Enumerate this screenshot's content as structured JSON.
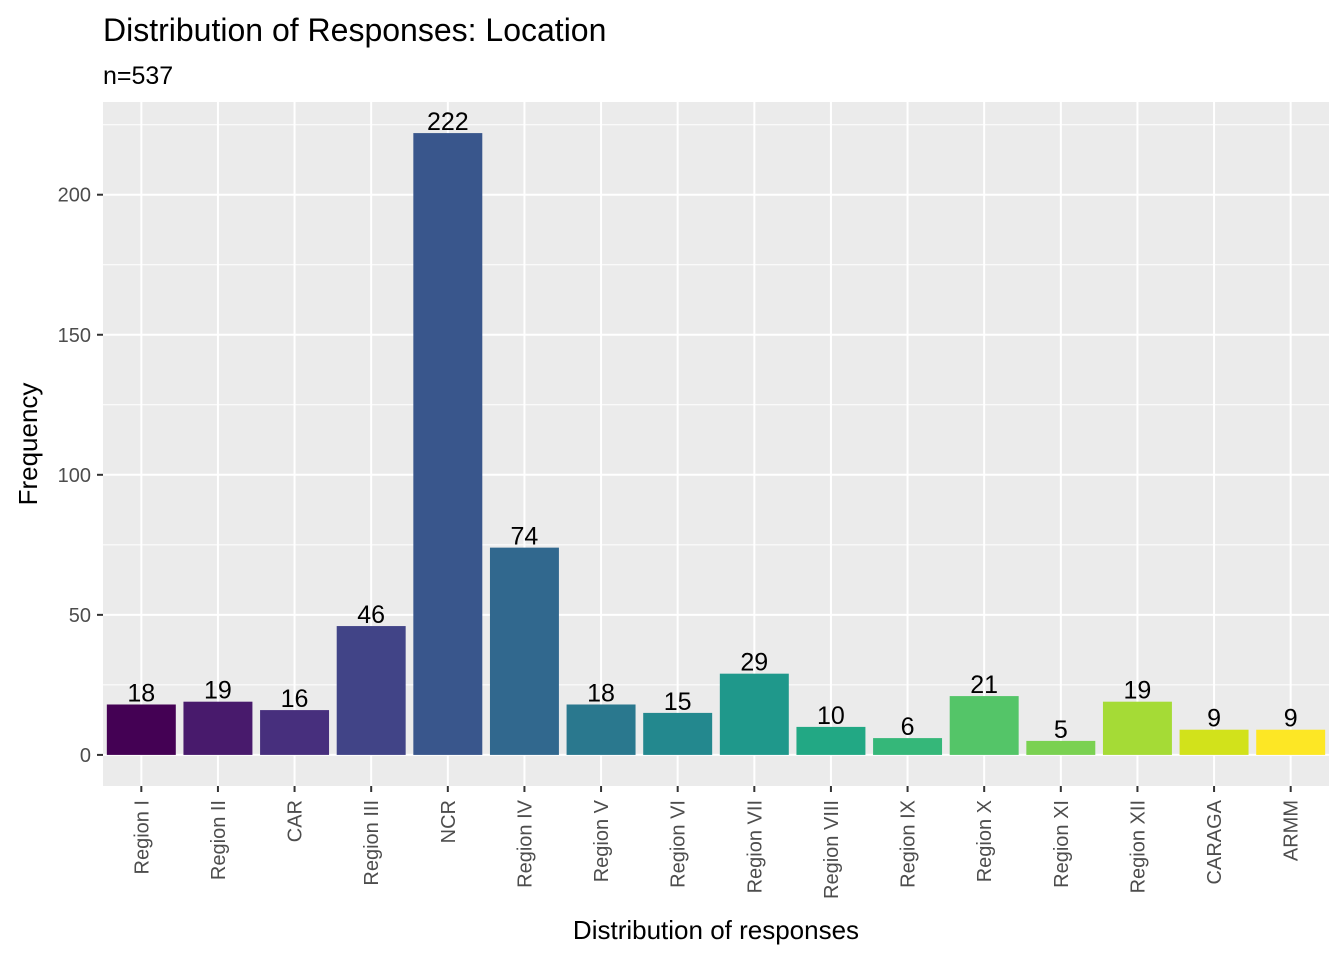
{
  "chart_data": {
    "type": "bar",
    "title": "Distribution of Responses: Location",
    "subtitle": "n=537",
    "xlabel": "Distribution of responses",
    "ylabel": "Frequency",
    "categories": [
      "Region I",
      "Region II",
      "CAR",
      "Region III",
      "NCR",
      "Region IV",
      "Region V",
      "Region VI",
      "Region VII",
      "Region VIII",
      "Region IX",
      "Region X",
      "Region XI",
      "Region XII",
      "CARAGA",
      "ARMM"
    ],
    "values": [
      18,
      19,
      16,
      46,
      222,
      74,
      18,
      15,
      29,
      10,
      6,
      21,
      5,
      19,
      9,
      9
    ],
    "data_labels": [
      "18",
      "19",
      "16",
      "46",
      "222",
      "74",
      "18",
      "15",
      "29",
      "10",
      "6",
      "21",
      "5",
      "19",
      "9",
      "9"
    ],
    "colors": [
      "#440154",
      "#481a6c",
      "#472f7d",
      "#414487",
      "#39568c",
      "#31688e",
      "#2a788e",
      "#23888e",
      "#1f988b",
      "#22a884",
      "#35b779",
      "#54c568",
      "#7ad151",
      "#a5db36",
      "#d2e21b",
      "#fde725"
    ],
    "y_ticks": [
      0,
      50,
      100,
      150,
      200
    ],
    "y_tick_labels": [
      "0",
      "50",
      "100",
      "150",
      "200"
    ],
    "ylim": [
      -11.1,
      233.1
    ],
    "grid": true,
    "panel_background": "#ebebeb",
    "grid_color": "#ffffff",
    "legend": "none"
  }
}
